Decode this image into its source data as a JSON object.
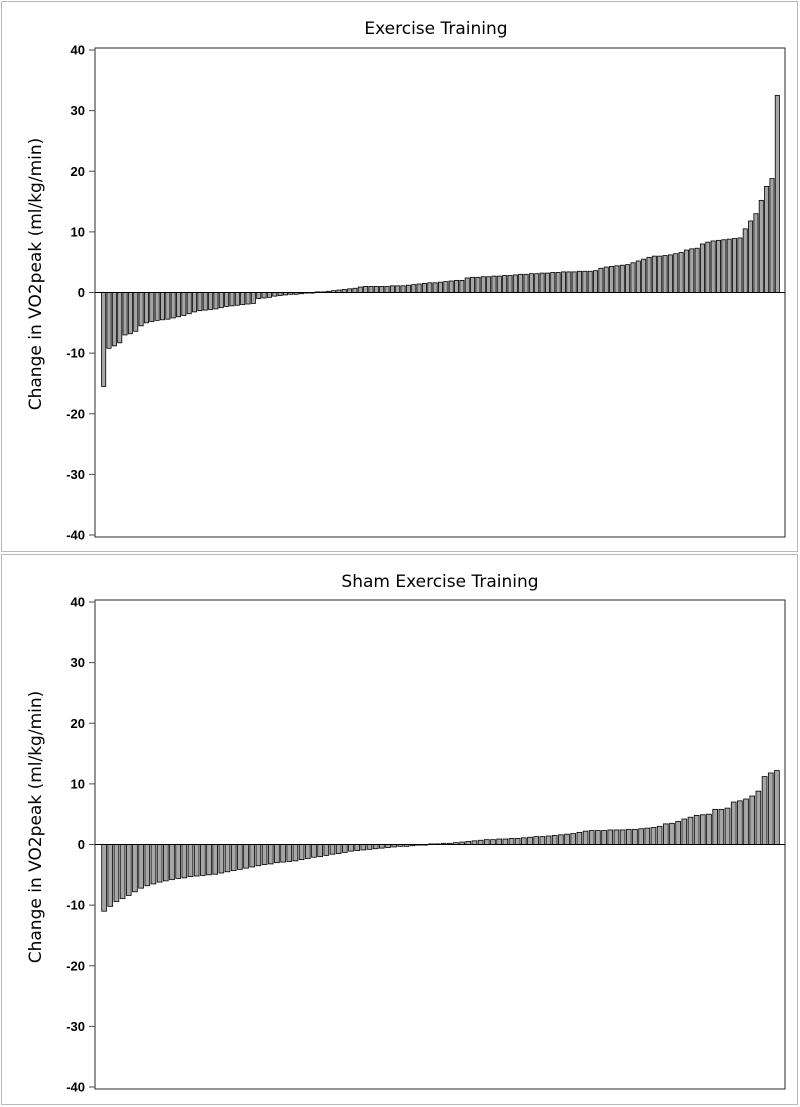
{
  "chart_data": [
    {
      "type": "bar",
      "title": "Exercise Training",
      "xlabel": "",
      "ylabel": "Change in VO2peak (ml/kg/min)",
      "ylim": [
        -40,
        40
      ],
      "yticks": [
        40,
        30,
        20,
        10,
        0,
        -10,
        -20,
        -30,
        -40
      ],
      "bar_fill": "#a6a6a6",
      "bar_stroke": "#000000",
      "values": [
        -15.5,
        -9.2,
        -8.8,
        -8.3,
        -7.0,
        -6.8,
        -6.4,
        -5.5,
        -5.0,
        -4.8,
        -4.6,
        -4.5,
        -4.4,
        -4.2,
        -4.0,
        -3.8,
        -3.5,
        -3.2,
        -3.0,
        -2.9,
        -2.8,
        -2.7,
        -2.5,
        -2.3,
        -2.2,
        -2.1,
        -2.0,
        -1.9,
        -1.8,
        -1.0,
        -0.9,
        -0.8,
        -0.6,
        -0.5,
        -0.4,
        -0.3,
        -0.3,
        -0.2,
        -0.1,
        -0.1,
        0.1,
        0.1,
        0.2,
        0.3,
        0.4,
        0.5,
        0.6,
        0.7,
        0.9,
        1.0,
        1.0,
        1.0,
        1.0,
        1.0,
        1.1,
        1.1,
        1.1,
        1.2,
        1.3,
        1.4,
        1.5,
        1.6,
        1.6,
        1.7,
        1.8,
        1.9,
        2.0,
        2.0,
        2.4,
        2.5,
        2.5,
        2.6,
        2.6,
        2.7,
        2.7,
        2.8,
        2.8,
        2.9,
        3.0,
        3.0,
        3.1,
        3.1,
        3.2,
        3.2,
        3.3,
        3.3,
        3.4,
        3.4,
        3.4,
        3.5,
        3.5,
        3.5,
        3.6,
        4.0,
        4.2,
        4.3,
        4.4,
        4.5,
        4.6,
        4.9,
        5.2,
        5.5,
        5.8,
        6.0,
        6.0,
        6.1,
        6.2,
        6.4,
        6.6,
        7.0,
        7.2,
        7.3,
        8.0,
        8.3,
        8.5,
        8.6,
        8.7,
        8.8,
        8.9,
        9.0,
        10.5,
        11.8,
        13.0,
        15.2,
        17.5,
        18.8,
        32.5
      ]
    },
    {
      "type": "bar",
      "title": "Sham Exercise Training",
      "xlabel": "",
      "ylabel": "Change in VO2peak (ml/kg/min)",
      "ylim": [
        -40,
        40
      ],
      "yticks": [
        40,
        30,
        20,
        10,
        0,
        -10,
        -20,
        -30,
        -40
      ],
      "bar_fill": "#a6a6a6",
      "bar_stroke": "#000000",
      "values": [
        -11.0,
        -10.2,
        -9.4,
        -8.9,
        -8.4,
        -7.8,
        -7.2,
        -6.8,
        -6.5,
        -6.2,
        -6.0,
        -5.8,
        -5.6,
        -5.5,
        -5.3,
        -5.2,
        -5.1,
        -5.0,
        -4.9,
        -4.7,
        -4.5,
        -4.3,
        -4.1,
        -3.9,
        -3.7,
        -3.5,
        -3.3,
        -3.2,
        -3.0,
        -2.9,
        -2.8,
        -2.7,
        -2.5,
        -2.3,
        -2.1,
        -2.0,
        -1.8,
        -1.6,
        -1.5,
        -1.3,
        -1.1,
        -1.0,
        -0.9,
        -0.8,
        -0.7,
        -0.6,
        -0.5,
        -0.4,
        -0.3,
        -0.3,
        -0.2,
        -0.1,
        -0.1,
        0.1,
        0.1,
        0.2,
        0.2,
        0.3,
        0.4,
        0.5,
        0.6,
        0.7,
        0.8,
        0.8,
        0.9,
        0.9,
        1.0,
        1.0,
        1.1,
        1.2,
        1.3,
        1.3,
        1.4,
        1.5,
        1.6,
        1.7,
        1.8,
        2.0,
        2.2,
        2.3,
        2.3,
        2.3,
        2.4,
        2.4,
        2.4,
        2.5,
        2.5,
        2.6,
        2.7,
        2.8,
        3.0,
        3.4,
        3.5,
        3.8,
        4.2,
        4.5,
        4.8,
        4.9,
        5.0,
        5.8,
        5.8,
        6.0,
        7.0,
        7.2,
        7.5,
        8.0,
        8.8,
        11.2,
        11.8,
        12.2
      ]
    }
  ]
}
